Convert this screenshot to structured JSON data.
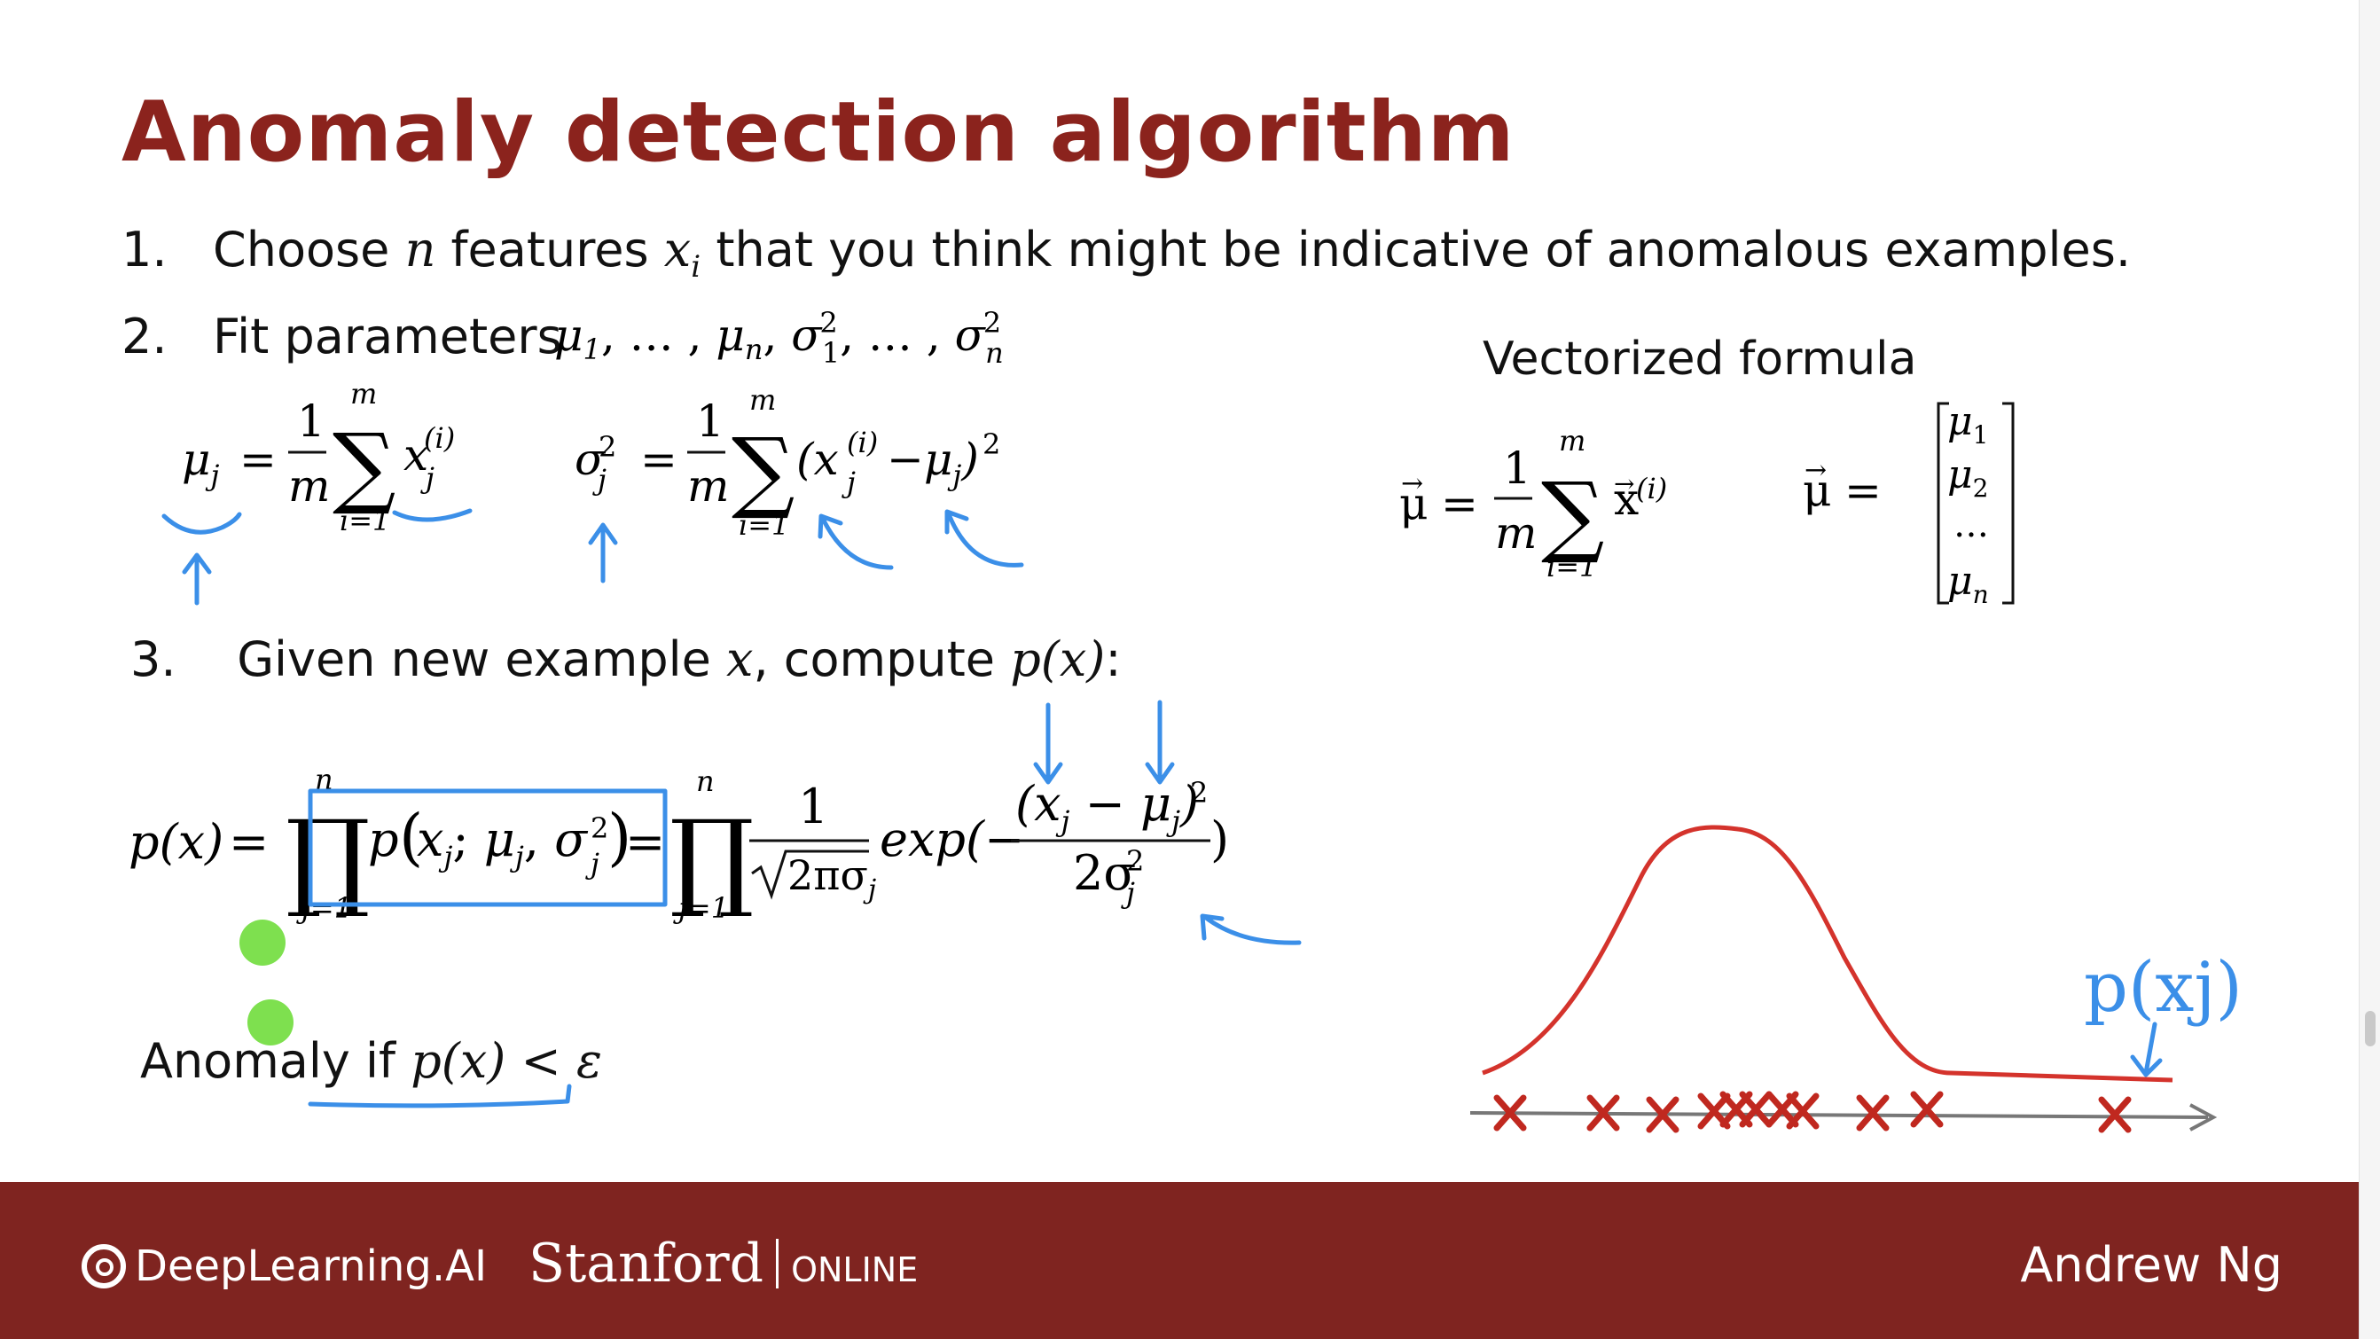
{
  "slide": {
    "title": "Anomaly detection algorithm",
    "step1": {
      "num": "1.",
      "pre": "Choose",
      "n": "n",
      "mid": "features",
      "x": "x",
      "i": "i",
      "post": "that you think might be indicative of anomalous examples."
    },
    "step2": {
      "num": "2.",
      "text": "Fit parameters"
    },
    "step3": {
      "num": "3.",
      "pre": "Given new example",
      "x": "x",
      "mid": ", compute",
      "px": "p(x)",
      "colon": ":"
    },
    "vectorized_heading": "Vectorized formula",
    "anomaly": {
      "pre": "Anomaly if",
      "cond": "p(x) <",
      "eps": "ε"
    },
    "annotation": "p(xj)"
  },
  "footer": {
    "logo_deeplearning": "DeepLearning.AI",
    "logo_stanford": "Stanford",
    "logo_online": "ONLINE",
    "author": "Andrew Ng"
  },
  "colors": {
    "title": "#8b231d",
    "footer": "#7f2420",
    "ink_blue": "#3b8fe8",
    "curve_red": "#d4332c",
    "marker_green": "#7ee04f"
  }
}
